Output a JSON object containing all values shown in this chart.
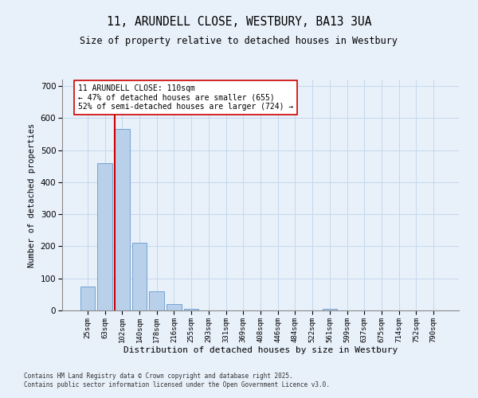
{
  "title": "11, ARUNDELL CLOSE, WESTBURY, BA13 3UA",
  "subtitle": "Size of property relative to detached houses in Westbury",
  "xlabel": "Distribution of detached houses by size in Westbury",
  "ylabel": "Number of detached properties",
  "categories": [
    "25sqm",
    "63sqm",
    "102sqm",
    "140sqm",
    "178sqm",
    "216sqm",
    "255sqm",
    "293sqm",
    "331sqm",
    "369sqm",
    "408sqm",
    "446sqm",
    "484sqm",
    "522sqm",
    "561sqm",
    "599sqm",
    "637sqm",
    "675sqm",
    "714sqm",
    "752sqm",
    "790sqm"
  ],
  "bar_heights": [
    75,
    460,
    565,
    210,
    60,
    20,
    5,
    0,
    0,
    0,
    0,
    0,
    0,
    0,
    5,
    0,
    0,
    0,
    0,
    0,
    0
  ],
  "bar_color": "#b8d0ea",
  "bar_edge_color": "#6699cc",
  "grid_color": "#c5d8ec",
  "background_color": "#e8f0fa",
  "vline_x_index": 2,
  "vline_color": "#cc0000",
  "annotation_text": "11 ARUNDELL CLOSE: 110sqm\n← 47% of detached houses are smaller (655)\n52% of semi-detached houses are larger (724) →",
  "annotation_box_color": "#ffffff",
  "annotation_box_edge": "#cc0000",
  "ylim": [
    0,
    720
  ],
  "yticks": [
    0,
    100,
    200,
    300,
    400,
    500,
    600,
    700
  ],
  "footer": "Contains HM Land Registry data © Crown copyright and database right 2025.\nContains public sector information licensed under the Open Government Licence v3.0."
}
